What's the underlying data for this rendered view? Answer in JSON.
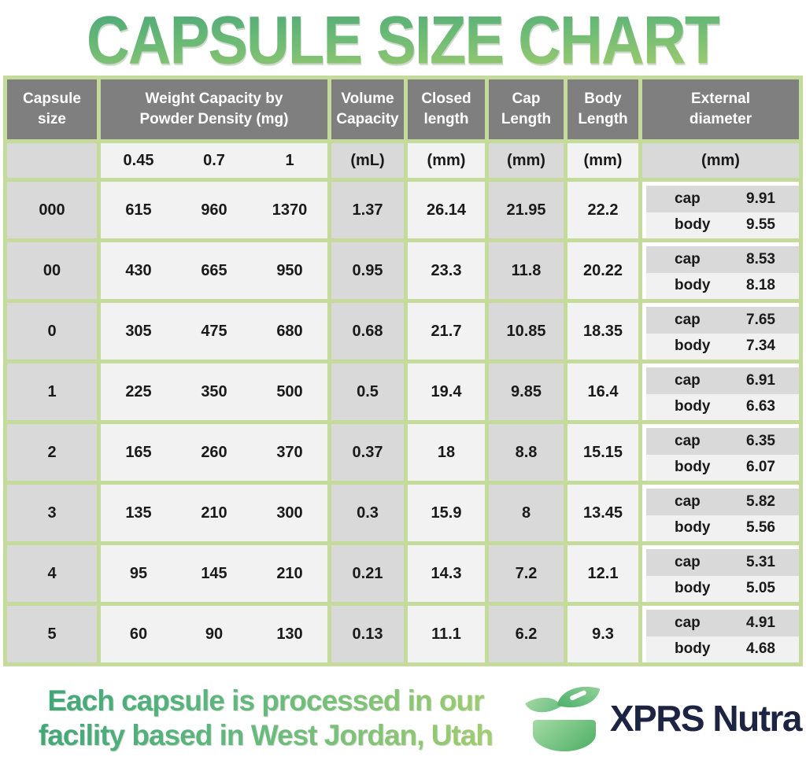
{
  "title": "CAPSULE SIZE CHART",
  "colors": {
    "border_green": "#c4db9b",
    "header_gray": "#7f7f7f",
    "cell_gray": "#d9d9d9",
    "cell_light": "#f2f2f2",
    "title_gradient_top": "#4ca878",
    "title_gradient_bottom": "#a6ce6c",
    "brand_navy": "#1d2342"
  },
  "table": {
    "headers": {
      "capsule_size": "Capsule size",
      "weight_capacity": [
        "Weight Capacity by",
        "Powder Density (mg)"
      ],
      "volume_capacity": [
        "Volume",
        "Capacity"
      ],
      "closed_length": [
        "Closed",
        "length"
      ],
      "cap_length": [
        "Cap",
        "Length"
      ],
      "body_length": [
        "Body",
        "Length"
      ],
      "external_diameter": [
        "External",
        "diameter"
      ]
    },
    "units": {
      "densities": [
        "0.45",
        "0.7",
        "1"
      ],
      "volume": "(mL)",
      "closed": "(mm)",
      "cap": "(mm)",
      "body": "(mm)",
      "external": "(mm)"
    },
    "ext_labels": {
      "cap": "cap",
      "body": "body"
    },
    "rows": [
      {
        "size": "000",
        "w045": "615",
        "w07": "960",
        "w1": "1370",
        "volume": "1.37",
        "closed": "26.14",
        "cap_length": "21.95",
        "body_length": "22.2",
        "ext_cap": "9.91",
        "ext_body": "9.55"
      },
      {
        "size": "00",
        "w045": "430",
        "w07": "665",
        "w1": "950",
        "volume": "0.95",
        "closed": "23.3",
        "cap_length": "11.8",
        "body_length": "20.22",
        "ext_cap": "8.53",
        "ext_body": "8.18"
      },
      {
        "size": "0",
        "w045": "305",
        "w07": "475",
        "w1": "680",
        "volume": "0.68",
        "closed": "21.7",
        "cap_length": "10.85",
        "body_length": "18.35",
        "ext_cap": "7.65",
        "ext_body": "7.34"
      },
      {
        "size": "1",
        "w045": "225",
        "w07": "350",
        "w1": "500",
        "volume": "0.5",
        "closed": "19.4",
        "cap_length": "9.85",
        "body_length": "16.4",
        "ext_cap": "6.91",
        "ext_body": "6.63"
      },
      {
        "size": "2",
        "w045": "165",
        "w07": "260",
        "w1": "370",
        "volume": "0.37",
        "closed": "18",
        "cap_length": "8.8",
        "body_length": "15.15",
        "ext_cap": "6.35",
        "ext_body": "6.07"
      },
      {
        "size": "3",
        "w045": "135",
        "w07": "210",
        "w1": "300",
        "volume": "0.3",
        "closed": "15.9",
        "cap_length": "8",
        "body_length": "13.45",
        "ext_cap": "5.82",
        "ext_body": "5.56"
      },
      {
        "size": "4",
        "w045": "95",
        "w07": "145",
        "w1": "210",
        "volume": "0.21",
        "closed": "14.3",
        "cap_length": "7.2",
        "body_length": "12.1",
        "ext_cap": "5.31",
        "ext_body": "5.05"
      },
      {
        "size": "5",
        "w045": "60",
        "w07": "90",
        "w1": "130",
        "volume": "0.13",
        "closed": "11.1",
        "cap_length": "6.2",
        "body_length": "9.3",
        "ext_cap": "4.91",
        "ext_body": "4.68"
      }
    ]
  },
  "chart_data": {
    "type": "table",
    "title": "CAPSULE SIZE CHART",
    "columns": [
      "Capsule size",
      "Weight Capacity at Powder Density 0.45 (mg)",
      "Weight Capacity at Powder Density 0.7 (mg)",
      "Weight Capacity at Powder Density 1 (mg)",
      "Volume Capacity (mL)",
      "Closed length (mm)",
      "Cap Length (mm)",
      "Body Length (mm)",
      "External diameter cap (mm)",
      "External diameter body (mm)"
    ],
    "rows": [
      [
        "000",
        615,
        960,
        1370,
        1.37,
        26.14,
        21.95,
        22.2,
        9.91,
        9.55
      ],
      [
        "00",
        430,
        665,
        950,
        0.95,
        23.3,
        11.8,
        20.22,
        8.53,
        8.18
      ],
      [
        "0",
        305,
        475,
        680,
        0.68,
        21.7,
        10.85,
        18.35,
        7.65,
        7.34
      ],
      [
        "1",
        225,
        350,
        500,
        0.5,
        19.4,
        9.85,
        16.4,
        6.91,
        6.63
      ],
      [
        "2",
        165,
        260,
        370,
        0.37,
        18,
        8.8,
        15.15,
        6.35,
        6.07
      ],
      [
        "3",
        135,
        210,
        300,
        0.3,
        15.9,
        8,
        13.45,
        5.82,
        5.56
      ],
      [
        "4",
        95,
        145,
        210,
        0.21,
        14.3,
        7.2,
        12.1,
        5.31,
        5.05
      ],
      [
        "5",
        60,
        90,
        130,
        0.13,
        11.1,
        6.2,
        9.3,
        4.91,
        4.68
      ]
    ]
  },
  "footer": {
    "line1": "Each capsule is processed in our",
    "line2": "facility based in West Jordan, Utah",
    "brand": "XPRS Nutra"
  }
}
